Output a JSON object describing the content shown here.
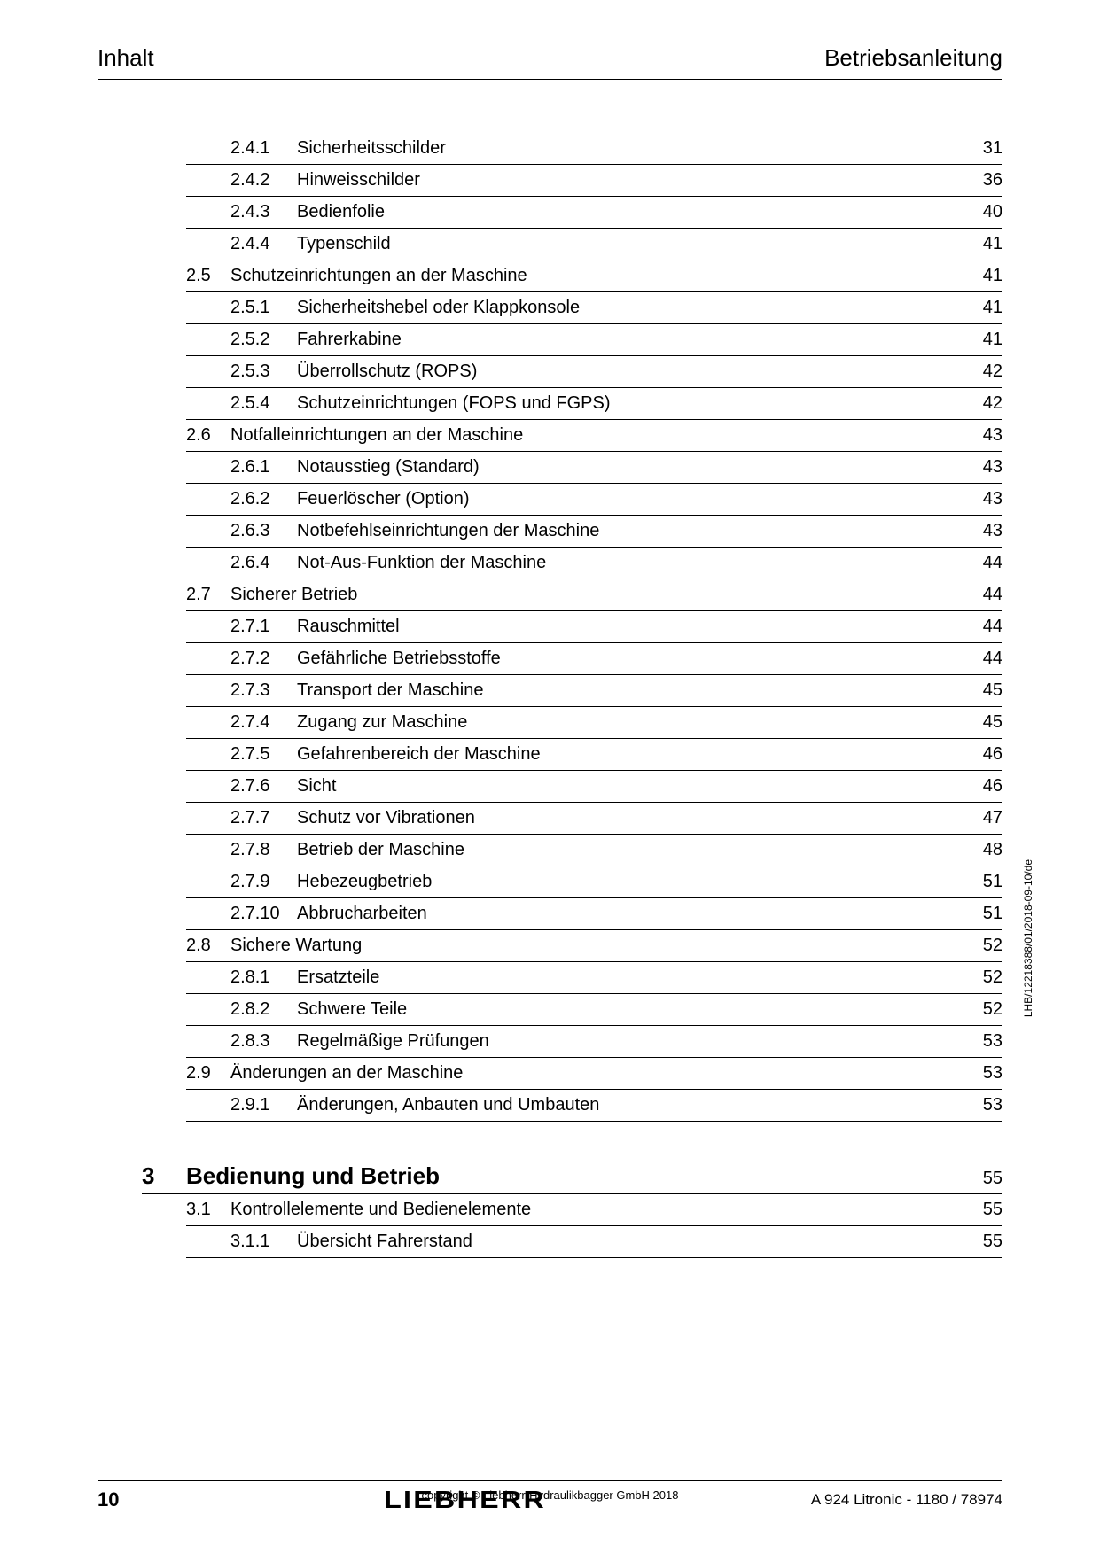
{
  "header": {
    "left": "Inhalt",
    "right": "Betriebsanleitung"
  },
  "toc": [
    {
      "chapter": "",
      "section": "",
      "sub": "2.4.1",
      "title": "Sicherheitsschilder",
      "page": "31"
    },
    {
      "chapter": "",
      "section": "",
      "sub": "2.4.2",
      "title": "Hinweisschilder",
      "page": "36"
    },
    {
      "chapter": "",
      "section": "",
      "sub": "2.4.3",
      "title": "Bedienfolie",
      "page": "40"
    },
    {
      "chapter": "",
      "section": "",
      "sub": "2.4.4",
      "title": "Typenschild",
      "page": "41"
    },
    {
      "chapter": "",
      "section": "2.5",
      "sub": "",
      "title": "Schutzeinrichtungen an der Maschine",
      "page": "41"
    },
    {
      "chapter": "",
      "section": "",
      "sub": "2.5.1",
      "title": "Sicherheitshebel oder Klappkonsole",
      "page": "41"
    },
    {
      "chapter": "",
      "section": "",
      "sub": "2.5.2",
      "title": "Fahrerkabine",
      "page": "41"
    },
    {
      "chapter": "",
      "section": "",
      "sub": "2.5.3",
      "title": "Überrollschutz (ROPS)",
      "page": "42"
    },
    {
      "chapter": "",
      "section": "",
      "sub": "2.5.4",
      "title": "Schutzeinrichtungen (FOPS und FGPS)",
      "page": "42"
    },
    {
      "chapter": "",
      "section": "2.6",
      "sub": "",
      "title": "Notfalleinrichtungen an der Maschine",
      "page": "43"
    },
    {
      "chapter": "",
      "section": "",
      "sub": "2.6.1",
      "title": "Notausstieg (Standard)",
      "page": "43"
    },
    {
      "chapter": "",
      "section": "",
      "sub": "2.6.2",
      "title": "Feuerlöscher (Option)",
      "page": "43"
    },
    {
      "chapter": "",
      "section": "",
      "sub": "2.6.3",
      "title": "Notbefehlseinrichtungen der Maschine",
      "page": "43"
    },
    {
      "chapter": "",
      "section": "",
      "sub": "2.6.4",
      "title": "Not-Aus-Funktion der Maschine",
      "page": "44"
    },
    {
      "chapter": "",
      "section": "2.7",
      "sub": "",
      "title": "Sicherer Betrieb",
      "page": "44"
    },
    {
      "chapter": "",
      "section": "",
      "sub": "2.7.1",
      "title": "Rauschmittel",
      "page": "44"
    },
    {
      "chapter": "",
      "section": "",
      "sub": "2.7.2",
      "title": "Gefährliche Betriebsstoffe",
      "page": "44"
    },
    {
      "chapter": "",
      "section": "",
      "sub": "2.7.3",
      "title": "Transport der Maschine",
      "page": "45"
    },
    {
      "chapter": "",
      "section": "",
      "sub": "2.7.4",
      "title": "Zugang zur Maschine",
      "page": "45"
    },
    {
      "chapter": "",
      "section": "",
      "sub": "2.7.5",
      "title": "Gefahrenbereich der Maschine",
      "page": "46"
    },
    {
      "chapter": "",
      "section": "",
      "sub": "2.7.6",
      "title": "Sicht",
      "page": "46"
    },
    {
      "chapter": "",
      "section": "",
      "sub": "2.7.7",
      "title": "Schutz vor Vibrationen",
      "page": "47"
    },
    {
      "chapter": "",
      "section": "",
      "sub": "2.7.8",
      "title": "Betrieb der Maschine",
      "page": "48"
    },
    {
      "chapter": "",
      "section": "",
      "sub": "2.7.9",
      "title": "Hebezeugbetrieb",
      "page": "51"
    },
    {
      "chapter": "",
      "section": "",
      "sub": "2.7.10",
      "title": "Abbrucharbeiten",
      "page": "51"
    },
    {
      "chapter": "",
      "section": "2.8",
      "sub": "",
      "title": "Sichere Wartung",
      "page": "52"
    },
    {
      "chapter": "",
      "section": "",
      "sub": "2.8.1",
      "title": "Ersatzteile",
      "page": "52"
    },
    {
      "chapter": "",
      "section": "",
      "sub": "2.8.2",
      "title": "Schwere Teile",
      "page": "52"
    },
    {
      "chapter": "",
      "section": "",
      "sub": "2.8.3",
      "title": "Regelmäßige Prüfungen",
      "page": "53"
    },
    {
      "chapter": "",
      "section": "2.9",
      "sub": "",
      "title": "Änderungen an der Maschine",
      "page": "53"
    },
    {
      "chapter": "",
      "section": "",
      "sub": "2.9.1",
      "title": "Änderungen, Anbauten und Umbauten",
      "page": "53"
    },
    {
      "chapter": "3",
      "section": "",
      "sub": "",
      "title": "Bedienung und Betrieb",
      "page": "55",
      "isChapter": true
    },
    {
      "chapter": "",
      "section": "3.1",
      "sub": "",
      "title": "Kontrollelemente und Bedienelemente",
      "page": "55"
    },
    {
      "chapter": "",
      "section": "",
      "sub": "3.1.1",
      "title": "Übersicht Fahrerstand",
      "page": "55"
    }
  ],
  "sideText": "LHB/12218388/01/2018-09-10/de",
  "footer": {
    "copyright": "copyright © Liebherr-Hydraulikbagger GmbH 2018",
    "logo": "LIEBHERR",
    "pageNum": "10",
    "model": "A 924 Litronic  - 1180 / 78974"
  }
}
